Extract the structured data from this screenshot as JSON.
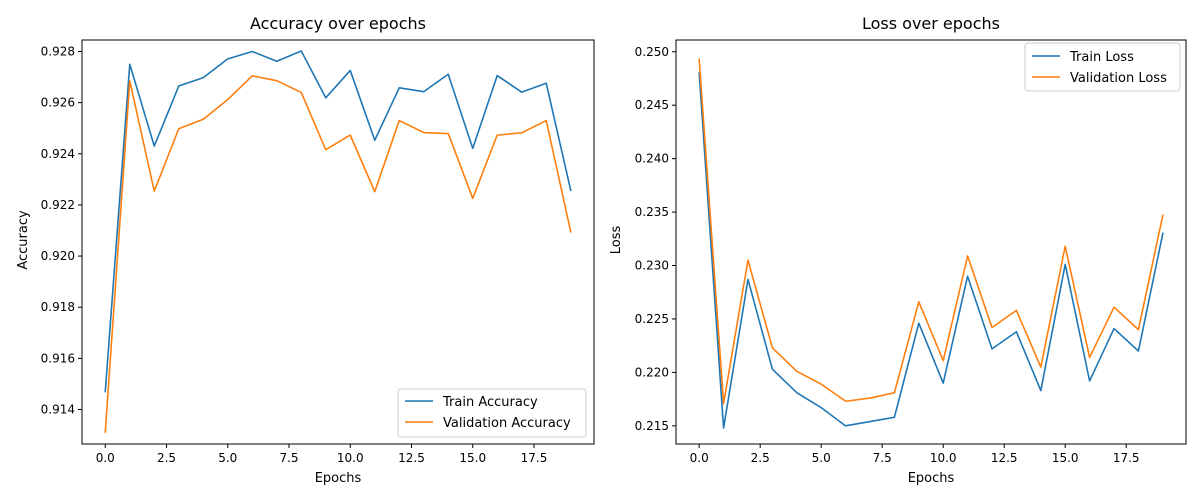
{
  "chart_data": [
    {
      "type": "line",
      "title": "Accuracy over epochs",
      "xlabel": "Epochs",
      "ylabel": "Accuracy",
      "xlim": [
        -0.95,
        19.95
      ],
      "ylim": [
        0.91265,
        0.92845
      ],
      "xticks": [
        0.0,
        2.5,
        5.0,
        7.5,
        10.0,
        12.5,
        15.0,
        17.5
      ],
      "xtick_labels": [
        "0.0",
        "2.5",
        "5.0",
        "7.5",
        "10.0",
        "12.5",
        "15.0",
        "17.5"
      ],
      "yticks": [
        0.914,
        0.916,
        0.918,
        0.92,
        0.922,
        0.924,
        0.926,
        0.928
      ],
      "ytick_labels": [
        "0.914",
        "0.916",
        "0.918",
        "0.920",
        "0.922",
        "0.924",
        "0.926",
        "0.928"
      ],
      "grid": false,
      "legend_position": "lower-right",
      "x": [
        0,
        1,
        2,
        3,
        4,
        5,
        6,
        7,
        8,
        9,
        10,
        11,
        12,
        13,
        14,
        15,
        16,
        17,
        18,
        19
      ],
      "series": [
        {
          "name": "Train Accuracy",
          "color": "#1f77b4",
          "values": [
            0.9147,
            0.9275,
            0.9243,
            0.92665,
            0.92698,
            0.92771,
            0.928,
            0.92762,
            0.92802,
            0.92619,
            0.92726,
            0.92453,
            0.92658,
            0.92643,
            0.92711,
            0.92421,
            0.92706,
            0.92641,
            0.92676,
            0.92257
          ]
        },
        {
          "name": "Validation Accuracy",
          "color": "#ff7f0e",
          "values": [
            0.91312,
            0.92685,
            0.92254,
            0.92498,
            0.92535,
            0.92612,
            0.92705,
            0.92686,
            0.9264,
            0.92416,
            0.92473,
            0.92252,
            0.9253,
            0.92483,
            0.92479,
            0.92226,
            0.92473,
            0.92482,
            0.9253,
            0.92095
          ]
        }
      ]
    },
    {
      "type": "line",
      "title": "Loss over epochs",
      "xlabel": "Epochs",
      "ylabel": "Loss",
      "xlim": [
        -0.95,
        19.95
      ],
      "ylim": [
        0.2133,
        0.2511
      ],
      "xticks": [
        0.0,
        2.5,
        5.0,
        7.5,
        10.0,
        12.5,
        15.0,
        17.5
      ],
      "xtick_labels": [
        "0.0",
        "2.5",
        "5.0",
        "7.5",
        "10.0",
        "12.5",
        "15.0",
        "17.5"
      ],
      "yticks": [
        0.215,
        0.22,
        0.225,
        0.23,
        0.235,
        0.24,
        0.245,
        0.25
      ],
      "ytick_labels": [
        "0.215",
        "0.220",
        "0.225",
        "0.230",
        "0.235",
        "0.240",
        "0.245",
        "0.250"
      ],
      "grid": false,
      "legend_position": "upper-right",
      "x": [
        0,
        1,
        2,
        3,
        4,
        5,
        6,
        7,
        8,
        9,
        10,
        11,
        12,
        13,
        14,
        15,
        16,
        17,
        18,
        19
      ],
      "series": [
        {
          "name": "Train Loss",
          "color": "#1f77b4",
          "values": [
            0.248,
            0.2148,
            0.2287,
            0.2203,
            0.2181,
            0.2167,
            0.215,
            0.2154,
            0.2158,
            0.2246,
            0.219,
            0.229,
            0.2222,
            0.2238,
            0.2183,
            0.2301,
            0.2192,
            0.2241,
            0.222,
            0.233
          ]
        },
        {
          "name": "Validation Loss",
          "color": "#ff7f0e",
          "values": [
            0.2493,
            0.2171,
            0.2305,
            0.2223,
            0.2201,
            0.2189,
            0.2173,
            0.2176,
            0.2181,
            0.2266,
            0.2211,
            0.2309,
            0.2242,
            0.2258,
            0.2205,
            0.2318,
            0.2214,
            0.2261,
            0.224,
            0.2347
          ]
        }
      ]
    }
  ]
}
